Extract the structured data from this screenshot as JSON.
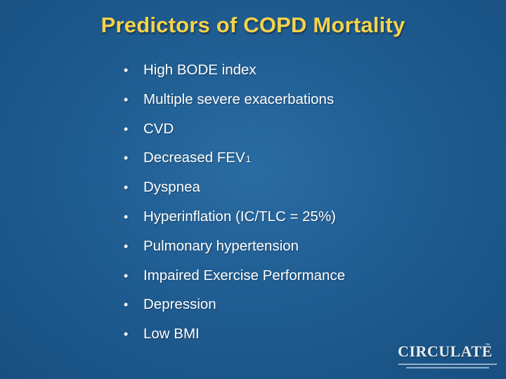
{
  "slide": {
    "title": "Predictors of COPD Mortality",
    "bullet_symbol": "•",
    "bullets": [
      {
        "text": "High BODE index",
        "subscript": ""
      },
      {
        "text": "Multiple severe exacerbations",
        "subscript": ""
      },
      {
        "text": "CVD",
        "subscript": ""
      },
      {
        "text": "Decreased FEV",
        "subscript": "1"
      },
      {
        "text": "Dyspnea",
        "subscript": ""
      },
      {
        "text": "Hyperinflation (IC/TLC = 25%)",
        "subscript": ""
      },
      {
        "text": "Pulmonary hypertension",
        "subscript": ""
      },
      {
        "text": "Impaired Exercise Performance",
        "subscript": ""
      },
      {
        "text": "Depression",
        "subscript": ""
      },
      {
        "text": "Low BMI",
        "subscript": ""
      }
    ]
  },
  "logo": {
    "name": "CIRCULATE",
    "trademark": "™"
  },
  "colors": {
    "background": "#1f5d92",
    "title": "#f5d24a",
    "text": "#ffffff"
  }
}
